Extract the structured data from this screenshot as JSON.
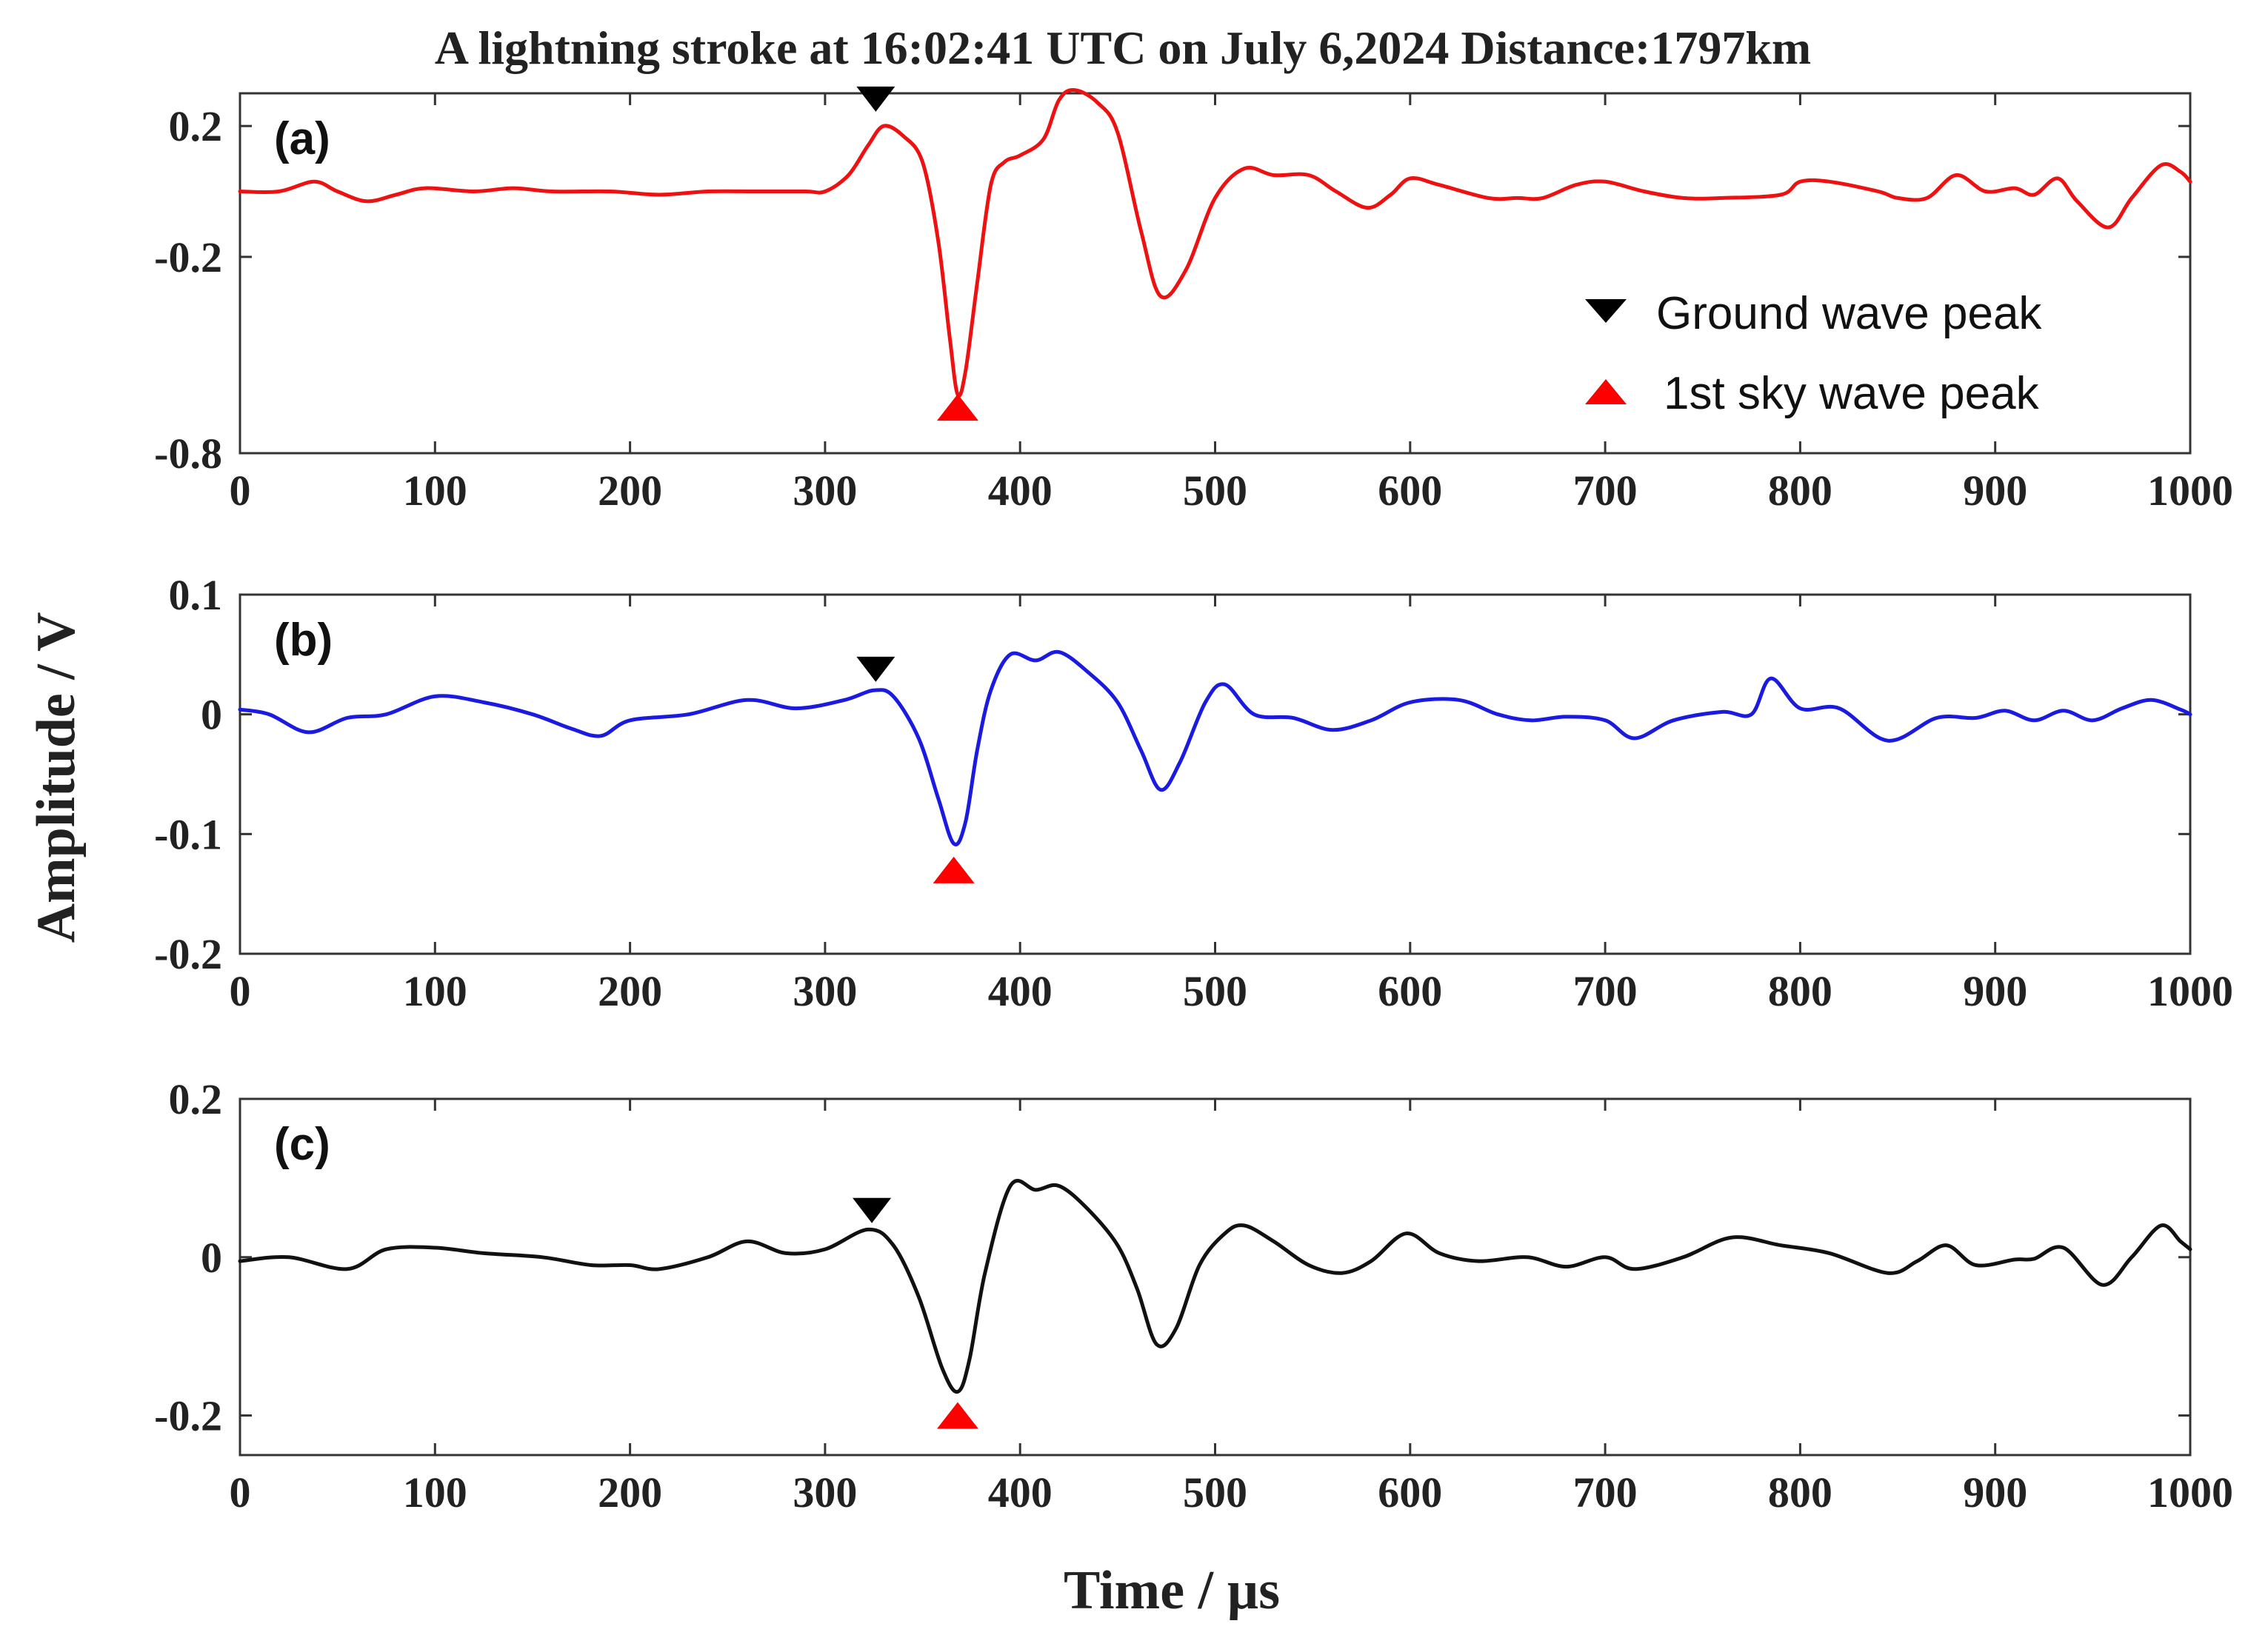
{
  "chart_data": {
    "type": "line",
    "title": "A lightning stroke at 16:02:41 UTC on July 6,2024  Distance:1797km",
    "xlabel": "Time / µs",
    "ylabel": "Amplitude / V",
    "legend": {
      "placement": "top-right of panel (a)",
      "entries": [
        {
          "label": "Ground wave peak",
          "marker": "down-triangle",
          "color": "#000000"
        },
        {
          "label": "1st sky wave peak",
          "marker": "up-triangle",
          "color": "#ff0000"
        }
      ]
    },
    "panels": [
      {
        "label": "(a)",
        "color": "#ee1111",
        "xlim": [
          0,
          1000
        ],
        "ylim": [
          -0.8,
          0.3
        ],
        "yticks": [
          0.2,
          -0.2,
          -0.8
        ],
        "ytick_labels": [
          "0.2",
          "-0.2",
          "-0.8"
        ],
        "xticks": [
          0,
          100,
          200,
          300,
          400,
          500,
          600,
          700,
          800,
          900,
          1000
        ],
        "xtick_labels": [
          "0",
          "100",
          "200",
          "300",
          "400",
          "500",
          "600",
          "700",
          "800",
          "900",
          "1000"
        ],
        "ground_peak": {
          "x": 326,
          "y": 0.28
        },
        "sky_peak": {
          "x": 368,
          "y": -0.66
        },
        "series": {
          "x": [
            0,
            20,
            38,
            50,
            65,
            80,
            95,
            120,
            140,
            160,
            190,
            215,
            240,
            265,
            290,
            300,
            312,
            322,
            330,
            340,
            350,
            358,
            364,
            368,
            372,
            378,
            385,
            392,
            400,
            412,
            420,
            428,
            440,
            450,
            462,
            472,
            485,
            500,
            515,
            530,
            548,
            562,
            578,
            590,
            600,
            615,
            640,
            655,
            668,
            685,
            700,
            720,
            740,
            760,
            790,
            800,
            815,
            840,
            850,
            865,
            880,
            895,
            910,
            920,
            932,
            942,
            958,
            970,
            985,
            995,
            1000
          ],
          "y": [
            0.0,
            0.0,
            0.03,
            0.0,
            -0.03,
            -0.01,
            0.01,
            0.0,
            0.01,
            0.0,
            0.0,
            -0.01,
            0.0,
            0.0,
            0.0,
            0.0,
            0.05,
            0.14,
            0.2,
            0.17,
            0.09,
            -0.15,
            -0.45,
            -0.62,
            -0.55,
            -0.28,
            0.02,
            0.09,
            0.11,
            0.16,
            0.28,
            0.31,
            0.27,
            0.18,
            -0.12,
            -0.32,
            -0.24,
            -0.02,
            0.07,
            0.05,
            0.05,
            0.0,
            -0.05,
            -0.01,
            0.04,
            0.02,
            -0.02,
            -0.02,
            -0.02,
            0.02,
            0.03,
            0.0,
            -0.02,
            -0.02,
            -0.01,
            0.03,
            0.03,
            0.0,
            -0.02,
            -0.02,
            0.05,
            0.0,
            0.01,
            -0.01,
            0.04,
            -0.03,
            -0.11,
            -0.02,
            0.08,
            0.06,
            0.03
          ]
        }
      },
      {
        "label": "(b)",
        "color": "#1a1ae0",
        "xlim": [
          0,
          1000
        ],
        "ylim": [
          -0.2,
          0.1
        ],
        "yticks": [
          0.1,
          0,
          -0.1,
          -0.2
        ],
        "ytick_labels": [
          "0.1",
          "0",
          "-0.1",
          "-0.2"
        ],
        "xticks": [
          0,
          100,
          200,
          300,
          400,
          500,
          600,
          700,
          800,
          900,
          1000
        ],
        "xtick_labels": [
          "0",
          "100",
          "200",
          "300",
          "400",
          "500",
          "600",
          "700",
          "800",
          "900",
          "1000"
        ],
        "ground_peak": {
          "x": 326,
          "y": 0.037
        },
        "sky_peak": {
          "x": 366,
          "y": -0.13
        },
        "series": {
          "x": [
            0,
            15,
            35,
            55,
            75,
            100,
            125,
            150,
            170,
            185,
            200,
            230,
            260,
            285,
            310,
            325,
            335,
            348,
            358,
            366,
            372,
            378,
            385,
            395,
            408,
            420,
            435,
            450,
            462,
            472,
            482,
            495,
            505,
            520,
            540,
            560,
            580,
            600,
            625,
            645,
            662,
            680,
            700,
            715,
            735,
            760,
            775,
            785,
            800,
            820,
            845,
            870,
            890,
            905,
            920,
            935,
            950,
            965,
            980,
            995,
            1000
          ],
          "y": [
            0.004,
            0.0,
            -0.015,
            -0.003,
            0.0,
            0.015,
            0.01,
            0.0,
            -0.012,
            -0.018,
            -0.005,
            0.0,
            0.012,
            0.005,
            0.012,
            0.02,
            0.015,
            -0.02,
            -0.07,
            -0.108,
            -0.09,
            -0.03,
            0.02,
            0.05,
            0.045,
            0.052,
            0.035,
            0.01,
            -0.03,
            -0.063,
            -0.04,
            0.01,
            0.025,
            0.0,
            -0.003,
            -0.013,
            -0.005,
            0.01,
            0.012,
            0.0,
            -0.005,
            -0.002,
            -0.005,
            -0.02,
            -0.005,
            0.002,
            0.0,
            0.03,
            0.005,
            0.005,
            -0.022,
            -0.003,
            -0.003,
            0.003,
            -0.005,
            0.003,
            -0.005,
            0.005,
            0.012,
            0.004,
            0.0
          ]
        }
      },
      {
        "label": "(c)",
        "color": "#111111",
        "xlim": [
          0,
          1000
        ],
        "ylim": [
          -0.25,
          0.2
        ],
        "yticks": [
          0.2,
          0,
          -0.2
        ],
        "ytick_labels": [
          "0.2",
          "0",
          "-0.2"
        ],
        "xticks": [
          0,
          100,
          200,
          300,
          400,
          500,
          600,
          700,
          800,
          900,
          1000
        ],
        "xtick_labels": [
          "0",
          "100",
          "200",
          "300",
          "400",
          "500",
          "600",
          "700",
          "800",
          "900",
          "1000"
        ],
        "ground_peak": {
          "x": 324,
          "y": 0.058
        },
        "sky_peak": {
          "x": 368,
          "y": -0.2
        },
        "series": {
          "x": [
            0,
            25,
            55,
            75,
            100,
            125,
            155,
            180,
            200,
            215,
            240,
            260,
            280,
            300,
            322,
            335,
            348,
            360,
            368,
            374,
            382,
            395,
            408,
            420,
            435,
            450,
            460,
            470,
            480,
            492,
            505,
            515,
            530,
            548,
            565,
            580,
            598,
            615,
            635,
            660,
            680,
            700,
            715,
            740,
            765,
            790,
            815,
            845,
            860,
            875,
            890,
            910,
            920,
            935,
            955,
            970,
            985,
            995,
            1000
          ],
          "y": [
            -0.005,
            0.0,
            -0.015,
            0.01,
            0.012,
            0.005,
            0.0,
            -0.01,
            -0.01,
            -0.015,
            0.0,
            0.02,
            0.005,
            0.01,
            0.035,
            0.015,
            -0.05,
            -0.14,
            -0.17,
            -0.13,
            -0.02,
            0.09,
            0.085,
            0.09,
            0.06,
            0.015,
            -0.04,
            -0.11,
            -0.09,
            -0.01,
            0.03,
            0.04,
            0.02,
            -0.01,
            -0.02,
            -0.005,
            0.03,
            0.005,
            -0.005,
            0.0,
            -0.012,
            0.0,
            -0.015,
            0.0,
            0.025,
            0.015,
            0.005,
            -0.02,
            -0.005,
            0.015,
            -0.01,
            -0.003,
            -0.002,
            0.012,
            -0.035,
            0.0,
            0.04,
            0.02,
            0.01
          ]
        }
      }
    ]
  }
}
